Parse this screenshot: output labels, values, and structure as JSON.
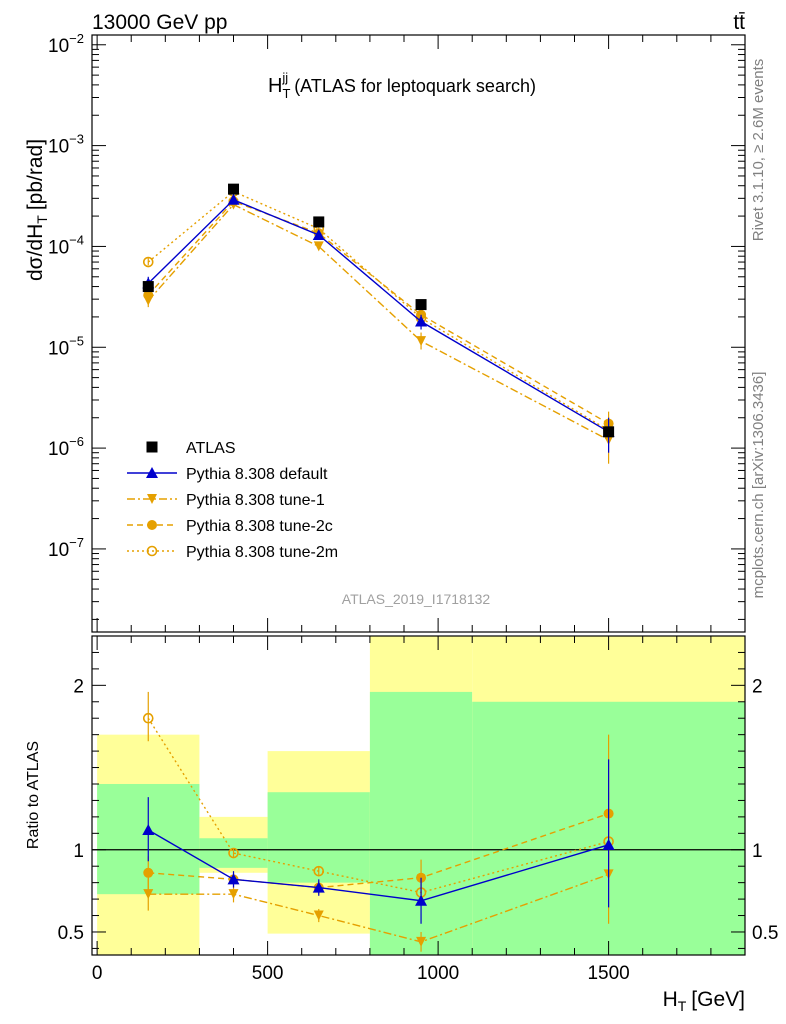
{
  "header": {
    "left": "13000 GeV pp",
    "right": "tt̄"
  },
  "side_labels": {
    "rivet": "Rivet 3.1.10, ≥ 2.6M events",
    "mcplots": "mcplots.cern.ch [arXiv:1306.3436]"
  },
  "watermark": "ATLAS_2019_I1718132",
  "colors": {
    "atlas": "#000000",
    "default": "#0000cc",
    "tune": "#e5a000",
    "green_band": "#99ff99",
    "yellow_band": "#ffff99"
  },
  "chart_data": [
    {
      "type": "scatter",
      "title_main": "H",
      "title_sub": "T",
      "title_sup": "jj",
      "title_rest": "(ATLAS for leptoquark search)",
      "ylabel_main": "dσ/dH",
      "ylabel_sub": "T",
      "ylabel_rest": "[pb/rad]",
      "yscale": "log",
      "ylim": [
        1.5e-08,
        0.0125
      ],
      "xlim": [
        -15,
        1900
      ],
      "y_ticks": [
        {
          "v": 1e-07,
          "base": "10",
          "exp": "−7"
        },
        {
          "v": 1e-06,
          "base": "10",
          "exp": "−6"
        },
        {
          "v": 1e-05,
          "base": "10",
          "exp": "−5"
        },
        {
          "v": 0.0001,
          "base": "10",
          "exp": "−4"
        },
        {
          "v": 0.001,
          "base": "10",
          "exp": "−3"
        },
        {
          "v": 0.01,
          "base": "10",
          "exp": "−2"
        }
      ],
      "x": [
        150,
        400,
        650,
        950,
        1500
      ],
      "series": [
        {
          "name": "ATLAS",
          "key": "atlas",
          "values": [
            4e-05,
            0.00037,
            0.000175,
            2.65e-05,
            1.45e-06
          ]
        },
        {
          "name": "Pythia 8.308 default",
          "key": "default",
          "values": [
            4.3e-05,
            0.00029,
            0.00013,
            1.8e-05,
            1.45e-06
          ],
          "err_lo": [
            3.7e-05,
            0.000275,
            0.00012,
            1.5e-05,
            9e-07
          ],
          "err_hi": [
            5e-05,
            0.000305,
            0.00014,
            2.1e-05,
            2e-06
          ]
        },
        {
          "name": "Pythia 8.308 tune-1",
          "key": "tune1",
          "values": [
            2.9e-05,
            0.00026,
            0.0001,
            1.15e-05,
            1.2e-06
          ],
          "err_lo": [
            2.5e-05,
            0.000245,
            9.3e-05,
            9.5e-06,
            7e-07
          ],
          "err_hi": [
            3.4e-05,
            0.000275,
            0.000108,
            1.4e-05,
            1.8e-06
          ]
        },
        {
          "name": "Pythia 8.308 tune-2c",
          "key": "tune2c",
          "values": [
            3.3e-05,
            0.00028,
            0.000135,
            2.1e-05,
            1.75e-06
          ],
          "err_lo": [
            2.9e-05,
            0.000265,
            0.000126,
            1.8e-05,
            1.2e-06
          ],
          "err_hi": [
            3.8e-05,
            0.000295,
            0.000145,
            2.4e-05,
            2.3e-06
          ]
        },
        {
          "name": "Pythia 8.308 tune-2m",
          "key": "tune2m",
          "values": [
            7e-05,
            0.00035,
            0.00015,
            1.95e-05,
            1.5e-06
          ],
          "err_lo": [
            6.5e-05,
            0.000335,
            0.000142,
            1.75e-05,
            1.1e-06
          ],
          "err_hi": [
            7.6e-05,
            0.000365,
            0.000158,
            2.2e-05,
            1.9e-06
          ]
        }
      ],
      "legend": [
        "ATLAS",
        "Pythia 8.308 default",
        "Pythia 8.308 tune-1",
        "Pythia 8.308 tune-2c",
        "Pythia 8.308 tune-2m"
      ],
      "legend_position": "lower-left"
    },
    {
      "type": "scatter",
      "ylabel": "Ratio to ATLAS",
      "xlabel_main": "H",
      "xlabel_sub": "T",
      "xlabel_rest": "[GeV]",
      "ylim": [
        0.36,
        2.3
      ],
      "xlim": [
        -15,
        1900
      ],
      "y_ticks": [
        {
          "v": 0.5,
          "label": "0.5"
        },
        {
          "v": 1,
          "label": "1"
        },
        {
          "v": 2,
          "label": "2"
        }
      ],
      "x_ticks": [
        {
          "v": 0,
          "label": "0"
        },
        {
          "v": 500,
          "label": "500"
        },
        {
          "v": 1000,
          "label": "1000"
        },
        {
          "v": 1500,
          "label": "1500"
        }
      ],
      "bands": [
        {
          "x0": 0,
          "x1": 300,
          "green": [
            0.73,
            1.4
          ],
          "yellow": [
            0.36,
            1.7
          ]
        },
        {
          "x0": 300,
          "x1": 500,
          "green": [
            0.89,
            1.07
          ],
          "yellow": [
            0.86,
            1.2
          ]
        },
        {
          "x0": 500,
          "x1": 800,
          "green": [
            0.8,
            1.35
          ],
          "yellow": [
            0.49,
            1.6
          ]
        },
        {
          "x0": 800,
          "x1": 1100,
          "green": [
            0.36,
            1.96
          ],
          "yellow": [
            0.36,
            2.3
          ]
        },
        {
          "x0": 1100,
          "x1": 1900,
          "green": [
            0.36,
            1.9
          ],
          "yellow": [
            0.36,
            2.3
          ]
        }
      ],
      "x": [
        150,
        400,
        650,
        950,
        1500
      ],
      "series": [
        {
          "name": "Pythia 8.308 default",
          "key": "default",
          "values": [
            1.12,
            0.82,
            0.77,
            0.69,
            1.03
          ],
          "err_lo": [
            0.93,
            0.77,
            0.72,
            0.55,
            0.65
          ],
          "err_hi": [
            1.32,
            0.87,
            0.82,
            0.83,
            1.55
          ]
        },
        {
          "name": "Pythia 8.308 tune-1",
          "key": "tune1",
          "values": [
            0.73,
            0.73,
            0.6,
            0.44,
            0.85
          ],
          "err_lo": [
            0.63,
            0.68,
            0.56,
            0.38,
            0.55
          ],
          "err_hi": [
            0.83,
            0.78,
            0.64,
            0.5,
            1.25
          ]
        },
        {
          "name": "Pythia 8.308 tune-2c",
          "key": "tune2c",
          "values": [
            0.86,
            0.82,
            0.77,
            0.83,
            1.22
          ],
          "err_lo": [
            0.76,
            0.78,
            0.73,
            0.72,
            0.9
          ],
          "err_hi": [
            0.96,
            0.86,
            0.81,
            0.94,
            1.7
          ]
        },
        {
          "name": "Pythia 8.308 tune-2m",
          "key": "tune2m",
          "values": [
            1.8,
            0.98,
            0.87,
            0.74,
            1.05
          ],
          "err_lo": [
            1.66,
            0.95,
            0.84,
            0.67,
            0.8
          ],
          "err_hi": [
            1.96,
            1.01,
            0.9,
            0.81,
            1.35
          ]
        }
      ]
    }
  ]
}
